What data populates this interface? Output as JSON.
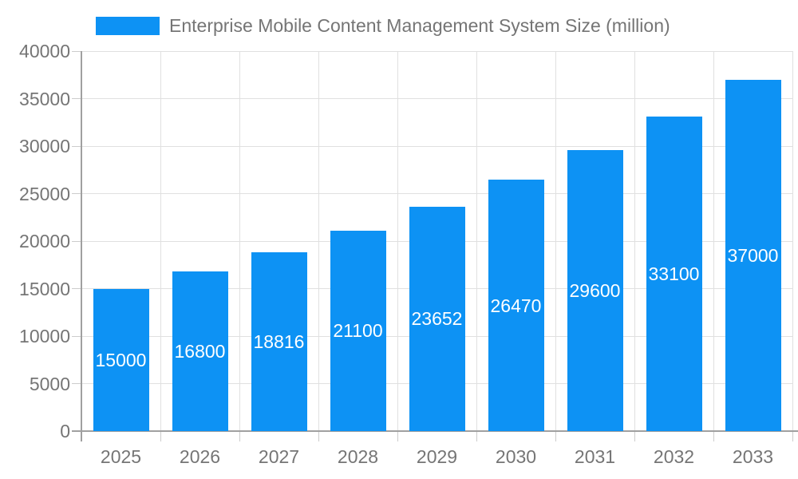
{
  "chart_data": {
    "type": "bar",
    "title": "",
    "legend": [
      "Enterprise Mobile Content Management System Size (million)"
    ],
    "categories": [
      "2025",
      "2026",
      "2027",
      "2028",
      "2029",
      "2030",
      "2031",
      "2032",
      "2033"
    ],
    "series": [
      {
        "name": "Enterprise Mobile Content Management System Size (million)",
        "values": [
          15000,
          16800,
          18816,
          21100,
          23652,
          26470,
          29600,
          33100,
          37000
        ]
      }
    ],
    "values": [
      15000,
      16800,
      18816,
      21100,
      23652,
      26470,
      29600,
      33100,
      37000
    ],
    "bar_value_labels": [
      "15000",
      "16800",
      "18816",
      "21100",
      "23652",
      "26470",
      "29600",
      "33100",
      "37000"
    ],
    "xlabel": "",
    "ylabel": "",
    "ylim": [
      0,
      40000
    ],
    "ytick_step": 5000,
    "ytick_labels": [
      "0",
      "5000",
      "10000",
      "15000",
      "20000",
      "25000",
      "30000",
      "35000",
      "40000"
    ],
    "grid": true,
    "legend_position": "top",
    "colors": {
      "bar": "#0D92F4",
      "bar_value_text": "#ffffff",
      "axis_text": "#757575",
      "gridline": "#e0e0e0",
      "axis_line": "#a0a0a0",
      "tick": "#cccccc",
      "background": "#ffffff"
    }
  }
}
